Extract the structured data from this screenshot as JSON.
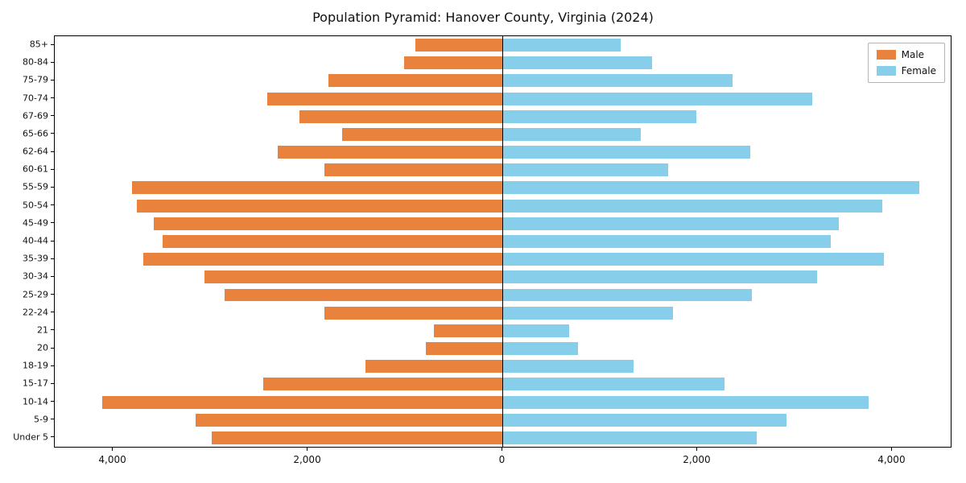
{
  "title": "Population Pyramid: Hanover County, Virginia (2024)",
  "legend": {
    "male": "Male",
    "female": "Female"
  },
  "colors": {
    "male": "#E8823C",
    "female": "#87CEEB",
    "axis": "#000000"
  },
  "chart_data": {
    "type": "bar",
    "orientation": "horizontal-pyramid",
    "title": "Population Pyramid: Hanover County, Virginia (2024)",
    "categories": [
      "85+",
      "80-84",
      "75-79",
      "70-74",
      "67-69",
      "65-66",
      "62-64",
      "60-61",
      "55-59",
      "50-54",
      "45-49",
      "40-44",
      "35-39",
      "30-34",
      "25-29",
      "22-24",
      "21",
      "20",
      "18-19",
      "15-17",
      "10-14",
      "5-9",
      "Under 5"
    ],
    "series": [
      {
        "name": "Male",
        "side": "left",
        "color": "#E8823C",
        "values": [
          900,
          1010,
          1790,
          2420,
          2090,
          1650,
          2310,
          1830,
          3810,
          3760,
          3580,
          3490,
          3690,
          3060,
          2860,
          1830,
          710,
          790,
          1410,
          2460,
          4110,
          3150,
          2990
        ]
      },
      {
        "name": "Female",
        "side": "right",
        "color": "#87CEEB",
        "values": [
          1210,
          1530,
          2360,
          3180,
          1990,
          1420,
          2540,
          1700,
          4280,
          3900,
          3450,
          3370,
          3910,
          3230,
          2560,
          1750,
          680,
          770,
          1340,
          2280,
          3760,
          2910,
          2610
        ]
      }
    ],
    "xlim": [
      -4600,
      4600
    ],
    "x_ticks": [
      {
        "value": -4000,
        "label": "4,000"
      },
      {
        "value": -2000,
        "label": "2,000"
      },
      {
        "value": 0,
        "label": "0"
      },
      {
        "value": 2000,
        "label": "2,000"
      },
      {
        "value": 4000,
        "label": "4,000"
      }
    ],
    "grid": false,
    "legend_position": "upper right"
  }
}
